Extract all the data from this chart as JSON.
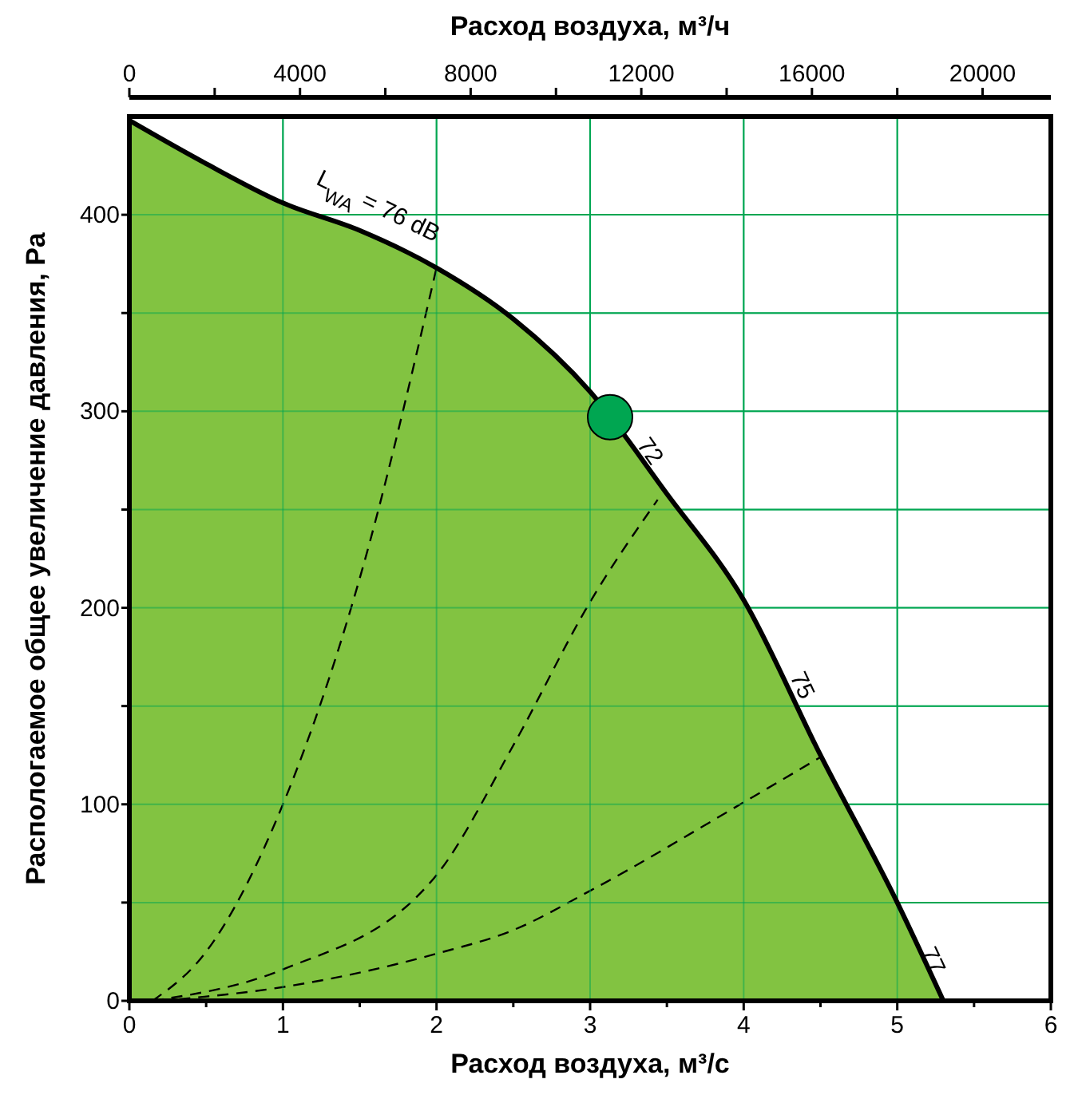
{
  "chart_data": {
    "type": "line",
    "xlabel": "Расход воздуха, м³/с",
    "x2label": "Расход воздуха, м³/ч",
    "ylabel": "Распологаемое общее увеличение давления, Pa",
    "xlim": [
      0,
      6
    ],
    "xticks": [
      0,
      {
        "value": 0.5,
        "label": null
      },
      1,
      {
        "value": 1.5,
        "label": null
      },
      2,
      {
        "value": 2.5,
        "label": null
      },
      3,
      {
        "value": 3.5,
        "label": null
      },
      4,
      {
        "value": 4.5,
        "label": null
      },
      5,
      {
        "value": 5.5,
        "label": null
      },
      6
    ],
    "x2lim": [
      0,
      21600
    ],
    "x2ticks": [
      0,
      {
        "value": 2000,
        "label": null
      },
      4000,
      {
        "value": 6000,
        "label": null
      },
      8000,
      {
        "value": 10000,
        "label": null
      },
      12000,
      {
        "value": 14000,
        "label": null
      },
      16000,
      {
        "value": 18000,
        "label": null
      },
      20000
    ],
    "ylim": [
      0,
      450
    ],
    "yticks": [
      0,
      {
        "value": 50,
        "label": null
      },
      100,
      {
        "value": 150,
        "label": null
      },
      200,
      {
        "value": 250,
        "label": null
      },
      300,
      {
        "value": 350,
        "label": null
      },
      400
    ],
    "grid": true,
    "series": [
      {
        "type": "area",
        "color": "#82c341",
        "x": [
          0,
          0.5,
          1,
          1.5,
          2,
          2.5,
          3,
          3.5,
          4,
          4.5,
          5,
          5.3
        ],
        "values": [
          448,
          426,
          406,
          392,
          373,
          347,
          310,
          258,
          204,
          125,
          50,
          0
        ]
      },
      {
        "color": "#000000",
        "line_style": "dashed",
        "x": [
          0.15,
          0.5,
          1,
          1.5,
          2
        ],
        "values": [
          0,
          25,
          100,
          215,
          373
        ]
      },
      {
        "color": "#000000",
        "line_style": "dashed",
        "x": [
          0.15,
          1,
          2,
          2.5,
          3,
          3.44
        ],
        "values": [
          0,
          16,
          64,
          130,
          203,
          255
        ]
      },
      {
        "color": "#000000",
        "line_style": "dashed",
        "x": [
          0.2,
          1,
          2,
          2.5,
          3,
          4,
          4.5
        ],
        "values": [
          0,
          7,
          24,
          36,
          56,
          101,
          124
        ]
      },
      {
        "type": "scatter",
        "color": "#00a651",
        "marker": "circle",
        "x": [
          3.13
        ],
        "values": [
          297
        ]
      }
    ],
    "annotations": [
      {
        "text": "L$_{WA}$ = 76 dB",
        "x": 1.5,
        "y": 392
      },
      {
        "text": "72",
        "x": 3.3,
        "y": 283
      },
      {
        "text": "75",
        "x": 4.3,
        "y": 165
      },
      {
        "text": "77",
        "x": 5.15,
        "y": 25
      }
    ]
  }
}
